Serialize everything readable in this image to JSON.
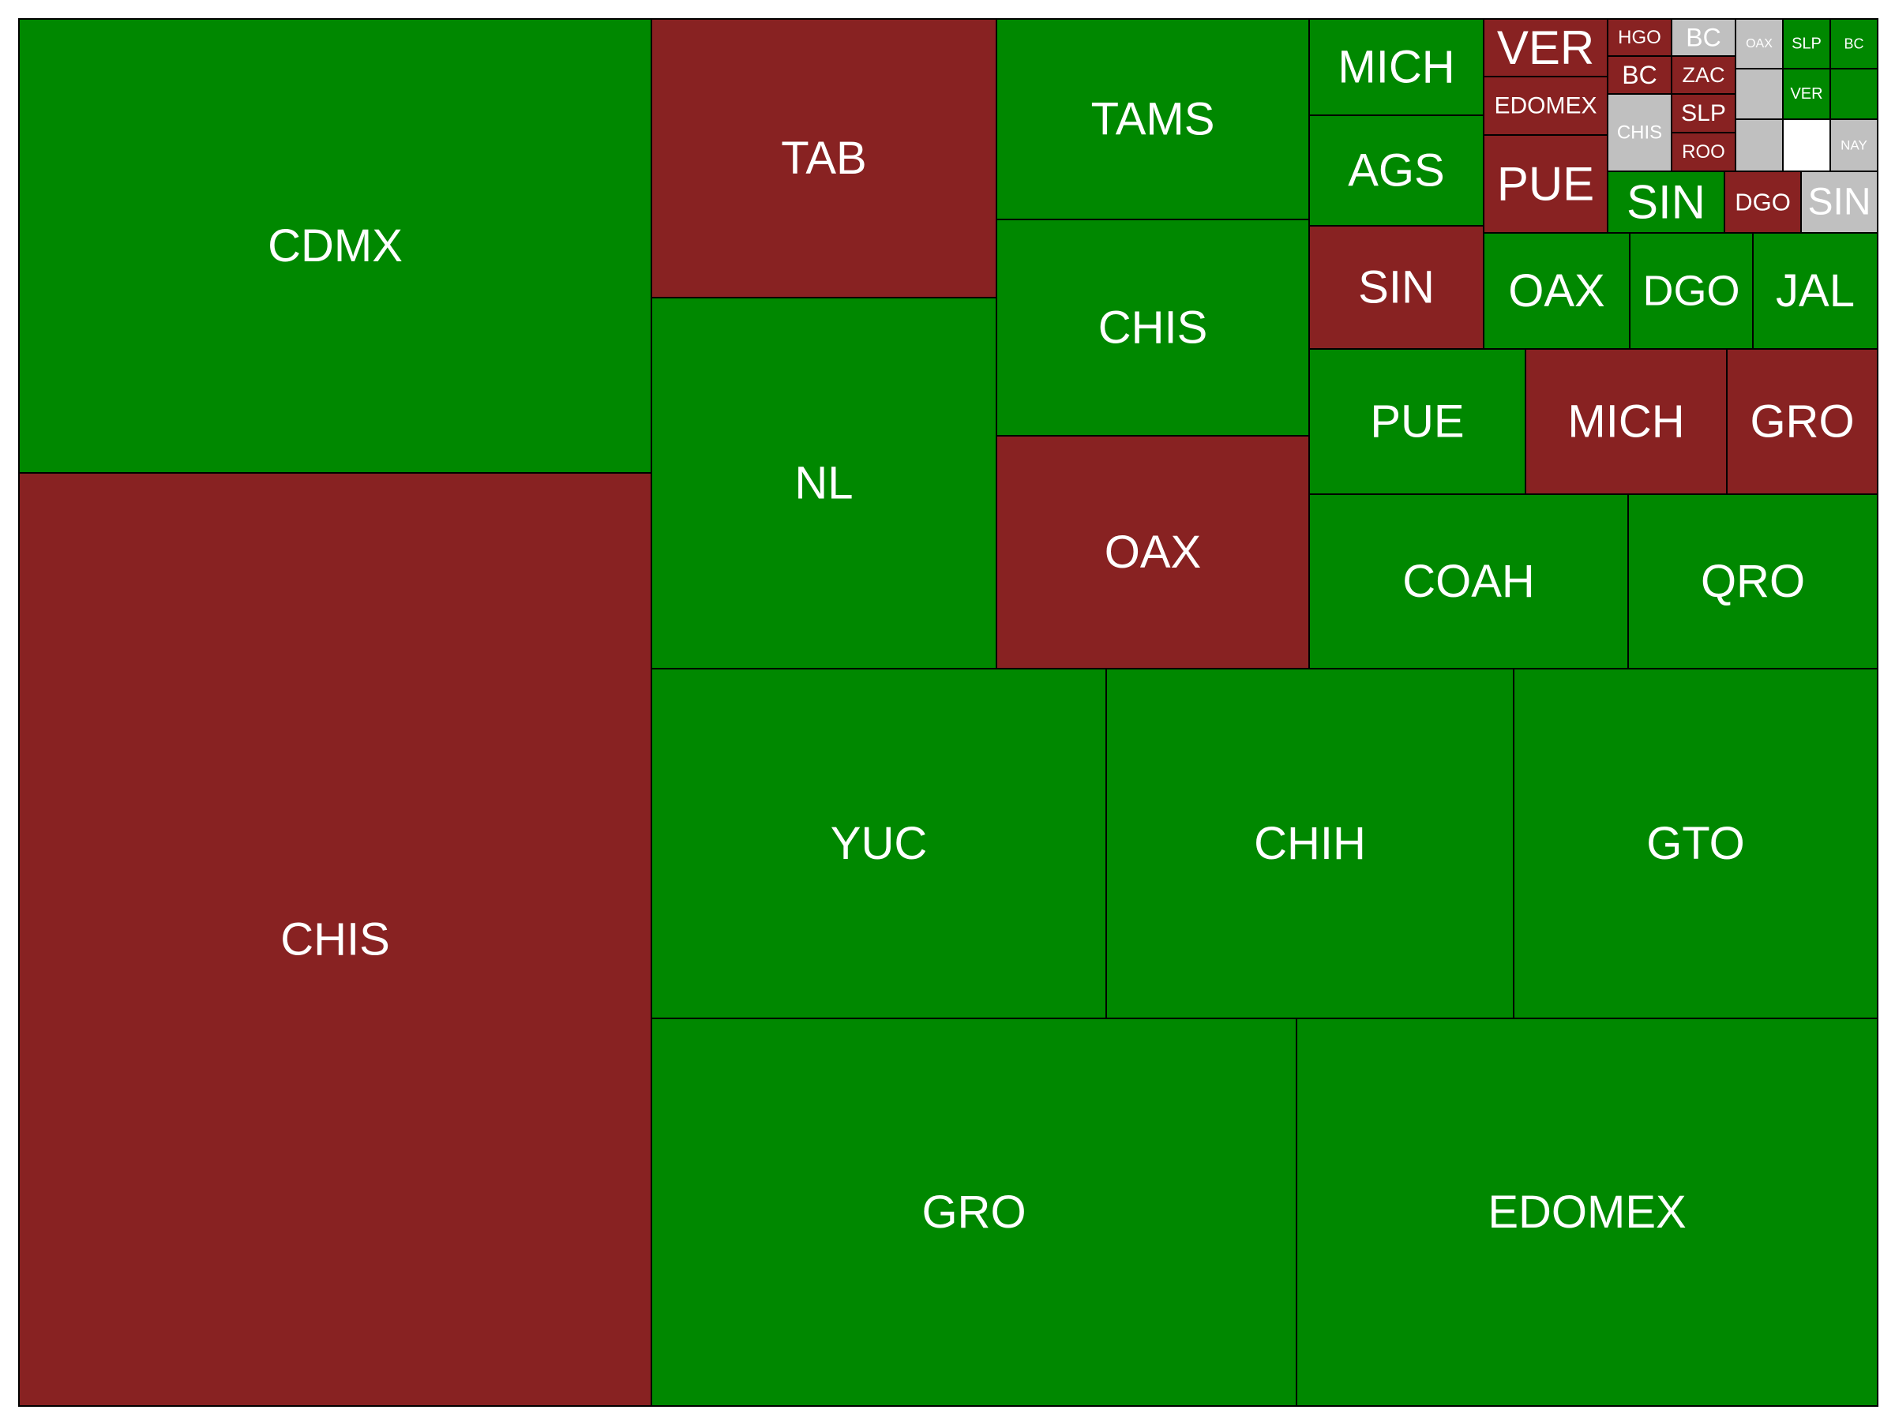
{
  "colors": {
    "green": "#008800",
    "red": "#882222",
    "gray": "#c0c0c0",
    "border": "#000000",
    "label": "#ffffff"
  },
  "chart_data": {
    "type": "treemap",
    "title": "",
    "cells": [
      {
        "label": "CDMX",
        "color": "green",
        "value": 196
      },
      {
        "label": "CHIS",
        "color": "red",
        "value": 428
      },
      {
        "label": "TAB",
        "color": "red",
        "value": 66
      },
      {
        "label": "NL",
        "color": "green",
        "value": 92
      },
      {
        "label": "TAMS",
        "color": "green",
        "value": 43
      },
      {
        "label": "CHIS",
        "color": "green",
        "value": 46
      },
      {
        "label": "OAX",
        "color": "red",
        "value": 49
      },
      {
        "label": "MICH",
        "color": "green",
        "value": 12
      },
      {
        "label": "AGS",
        "color": "green",
        "value": 13
      },
      {
        "label": "VER",
        "color": "red",
        "value": 7.6
      },
      {
        "label": "EDOMEX",
        "color": "red",
        "value": 4.6
      },
      {
        "label": "PUE",
        "color": "red",
        "value": 8.0
      },
      {
        "label": "HGO",
        "color": "red",
        "value": 1.5
      },
      {
        "label": "BC",
        "color": "gray",
        "value": 1.5
      },
      {
        "label": "BC",
        "color": "red",
        "value": 1.4
      },
      {
        "label": "ZAC",
        "color": "red",
        "value": 1.4
      },
      {
        "label": "CHIS",
        "color": "gray",
        "value": 2.8
      },
      {
        "label": "SLP",
        "color": "red",
        "value": 1.4
      },
      {
        "label": "ROO",
        "color": "red",
        "value": 1.3
      },
      {
        "label": "OAX",
        "color": "gray",
        "value": 1.3
      },
      {
        "label": "",
        "color": "gray",
        "value": 1.3
      },
      {
        "label": "",
        "color": "gray",
        "value": 1.3
      },
      {
        "label": "SLP",
        "color": "green",
        "value": 1.1
      },
      {
        "label": "VER",
        "color": "green",
        "value": 1.1
      },
      {
        "label": "BC",
        "color": "green",
        "value": 2.8
      },
      {
        "label": "",
        "color": "green",
        "value": 0.6
      },
      {
        "label": "NAY",
        "color": "gray",
        "value": 1.0
      },
      {
        "label": "SIN",
        "color": "green",
        "value": 4.8
      },
      {
        "label": "DGO",
        "color": "red",
        "value": 3.1
      },
      {
        "label": "SIN",
        "color": "gray",
        "value": 3.2
      },
      {
        "label": "SIN",
        "color": "red",
        "value": 15
      },
      {
        "label": "OAX",
        "color": "green",
        "value": 12
      },
      {
        "label": "DGO",
        "color": "green",
        "value": 10
      },
      {
        "label": "JAL",
        "color": "green",
        "value": 10
      },
      {
        "label": "PUE",
        "color": "green",
        "value": 21
      },
      {
        "label": "MICH",
        "color": "red",
        "value": 20
      },
      {
        "label": "GRO",
        "color": "red",
        "value": 15
      },
      {
        "label": "COAH",
        "color": "green",
        "value": 39
      },
      {
        "label": "QRO",
        "color": "green",
        "value": 31
      },
      {
        "label": "YUC",
        "color": "green",
        "value": 110
      },
      {
        "label": "CHIH",
        "color": "green",
        "value": 98
      },
      {
        "label": "GTO",
        "color": "green",
        "value": 89
      },
      {
        "label": "GRO",
        "color": "green",
        "value": 170
      },
      {
        "label": "EDOMEX",
        "color": "green",
        "value": 153
      }
    ]
  }
}
